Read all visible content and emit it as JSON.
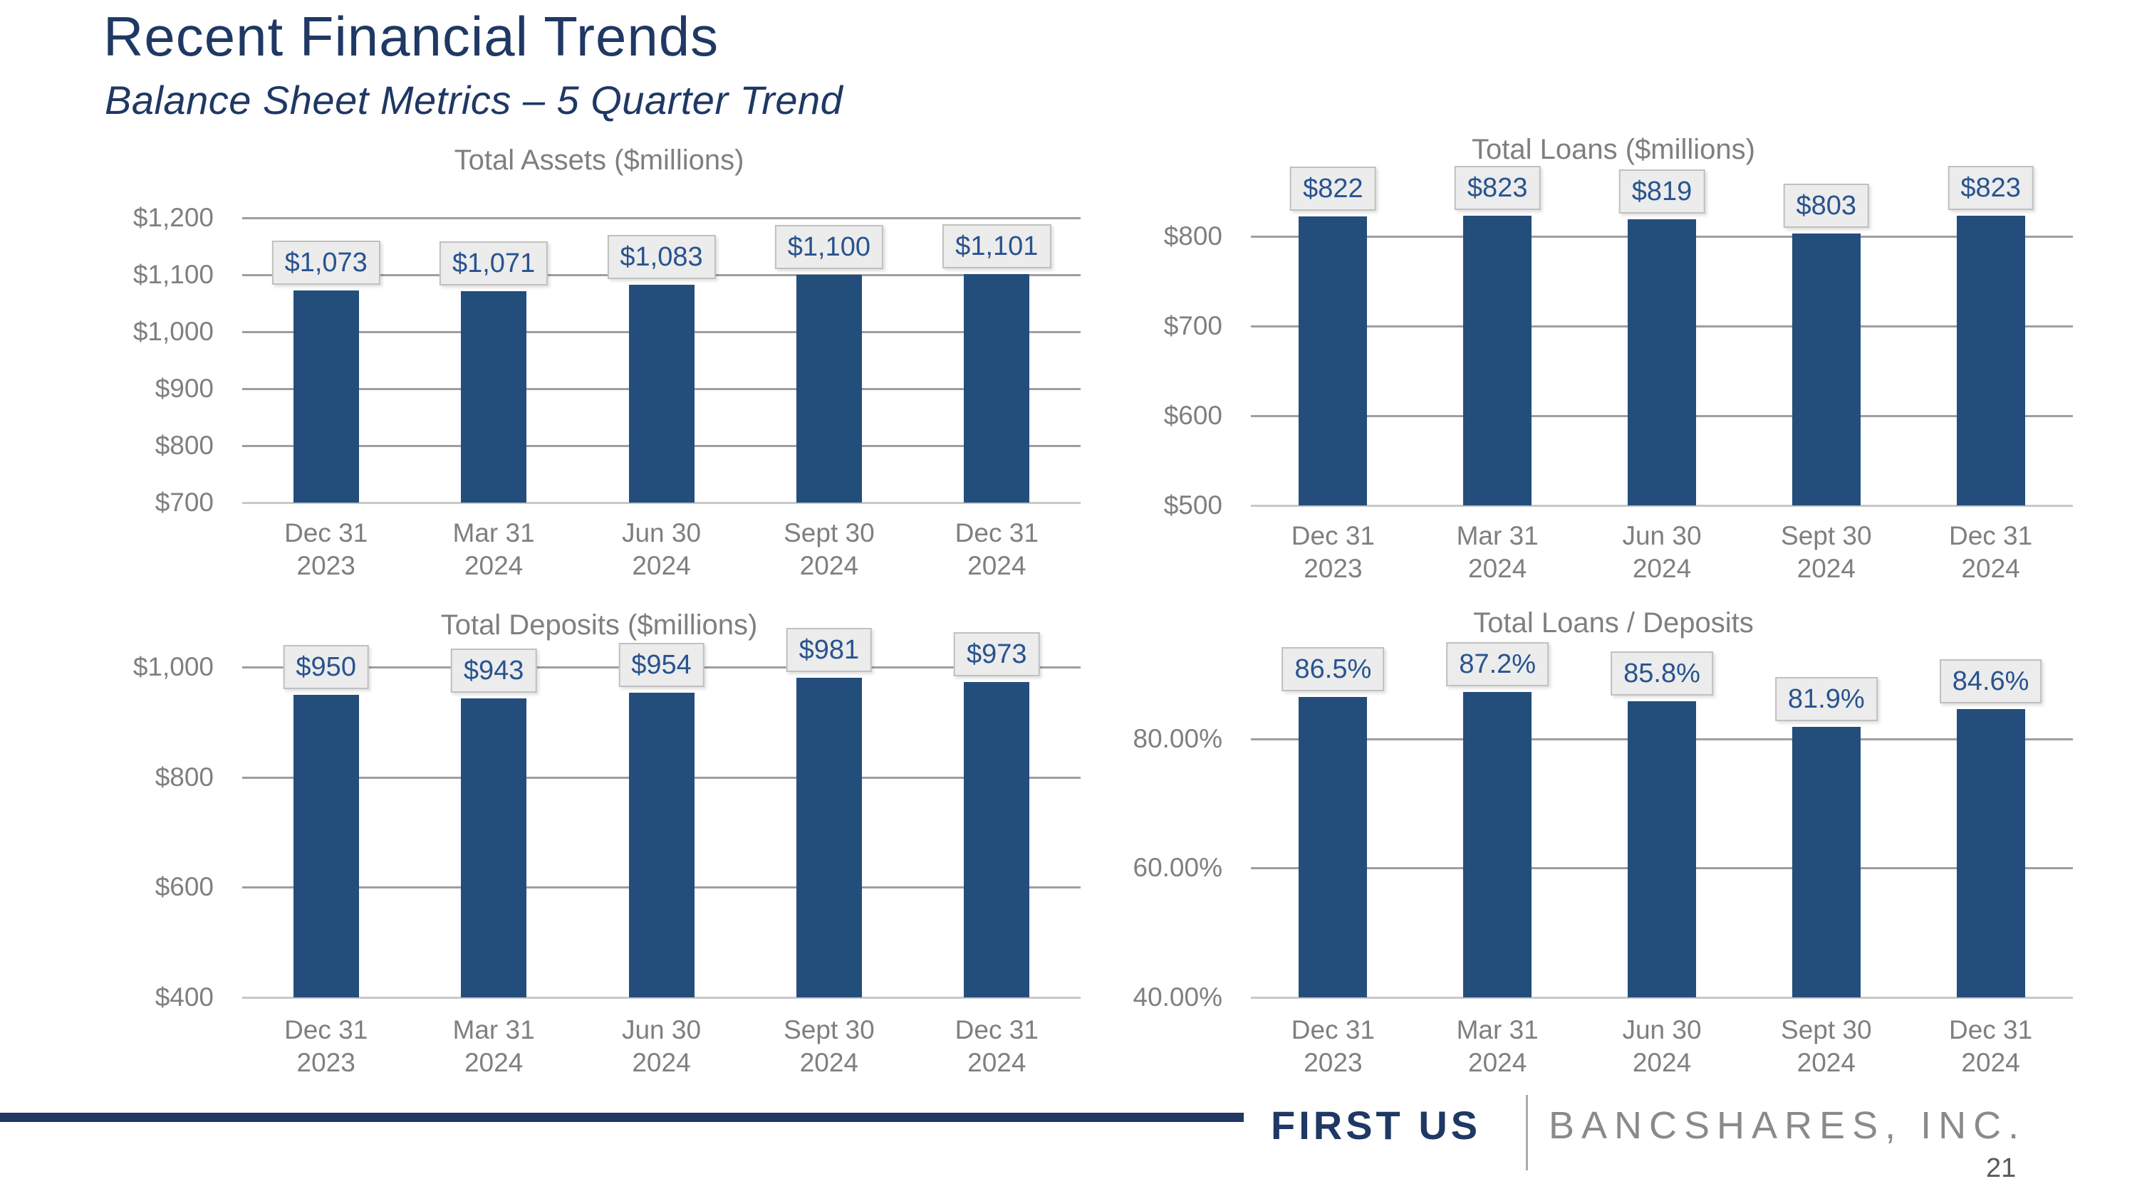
{
  "slide": {
    "title": "Recent Financial Trends",
    "subtitle": "Balance Sheet Metrics – 5 Quarter Trend",
    "page_number": "21"
  },
  "footer": {
    "brand_primary": "FIRST US",
    "brand_secondary": "BANCSHARES, INC."
  },
  "colors": {
    "bar": "#234E7C",
    "title_navy": "#1F3864",
    "chart_text_gray": "#7F7F7F",
    "gridline": "#9E9E9E",
    "baseline": "#C8C8C8",
    "data_label_text": "#28538F",
    "data_label_bg": "#ECECEC",
    "data_label_border": "#C0C0C0"
  },
  "chart_data": [
    {
      "id": "total_assets",
      "type": "bar",
      "title": "Total Assets ($millions)",
      "categories": [
        [
          "Dec 31",
          "2023"
        ],
        [
          "Mar 31",
          "2024"
        ],
        [
          "Jun 30",
          "2024"
        ],
        [
          "Sept 30",
          "2024"
        ],
        [
          "Dec 31",
          "2024"
        ]
      ],
      "values": [
        1073,
        1071,
        1083,
        1100,
        1101
      ],
      "data_labels": [
        "$1,073",
        "$1,071",
        "$1,083",
        "$1,100",
        "$1,101"
      ],
      "ylim": [
        700,
        1200
      ],
      "yticks": [
        {
          "value": 1200,
          "label": "$1,200"
        },
        {
          "value": 1100,
          "label": "$1,100"
        },
        {
          "value": 1000,
          "label": "$1,000"
        },
        {
          "value": 900,
          "label": "$900"
        },
        {
          "value": 800,
          "label": "$800"
        },
        {
          "value": 700,
          "label": "$700"
        }
      ],
      "grid": true,
      "legend": false
    },
    {
      "id": "total_loans",
      "type": "bar",
      "title": "Total Loans ($millions)",
      "categories": [
        [
          "Dec 31",
          "2023"
        ],
        [
          "Mar 31",
          "2024"
        ],
        [
          "Jun 30",
          "2024"
        ],
        [
          "Sept 30",
          "2024"
        ],
        [
          "Dec 31",
          "2024"
        ]
      ],
      "values": [
        822,
        823,
        819,
        803,
        823
      ],
      "data_labels": [
        "$822",
        "$823",
        "$819",
        "$803",
        "$823"
      ],
      "ylim": [
        500,
        850
      ],
      "yticks": [
        {
          "value": 800,
          "label": "$800"
        },
        {
          "value": 700,
          "label": "$700"
        },
        {
          "value": 600,
          "label": "$600"
        },
        {
          "value": 500,
          "label": "$500"
        }
      ],
      "grid": true,
      "legend": false
    },
    {
      "id": "total_deposits",
      "type": "bar",
      "title": "Total Deposits ($millions)",
      "categories": [
        [
          "Dec 31",
          "2023"
        ],
        [
          "Mar 31",
          "2024"
        ],
        [
          "Jun 30",
          "2024"
        ],
        [
          "Sept 30",
          "2024"
        ],
        [
          "Dec 31",
          "2024"
        ]
      ],
      "values": [
        950,
        943,
        954,
        981,
        973
      ],
      "data_labels": [
        "$950",
        "$943",
        "$954",
        "$981",
        "$973"
      ],
      "ylim": [
        400,
        1050
      ],
      "yticks": [
        {
          "value": 1000,
          "label": "$1,000"
        },
        {
          "value": 800,
          "label": "$800"
        },
        {
          "value": 600,
          "label": "$600"
        },
        {
          "value": 400,
          "label": "$400"
        }
      ],
      "grid": true,
      "legend": false
    },
    {
      "id": "loans_to_deposits",
      "type": "bar",
      "title": "Total Loans / Deposits",
      "categories": [
        [
          "Dec 31",
          "2023"
        ],
        [
          "Mar 31",
          "2024"
        ],
        [
          "Jun 30",
          "2024"
        ],
        [
          "Sept 30",
          "2024"
        ],
        [
          "Dec 31",
          "2024"
        ]
      ],
      "values": [
        86.5,
        87.2,
        85.8,
        81.9,
        84.6
      ],
      "data_labels": [
        "86.5%",
        "87.2%",
        "85.8%",
        "81.9%",
        "84.6%"
      ],
      "ylim": [
        40,
        90
      ],
      "yticks": [
        {
          "value": 80,
          "label": "80.00%"
        },
        {
          "value": 60,
          "label": "60.00%"
        },
        {
          "value": 40,
          "label": "40.00%"
        }
      ],
      "grid": true,
      "legend": false
    }
  ]
}
